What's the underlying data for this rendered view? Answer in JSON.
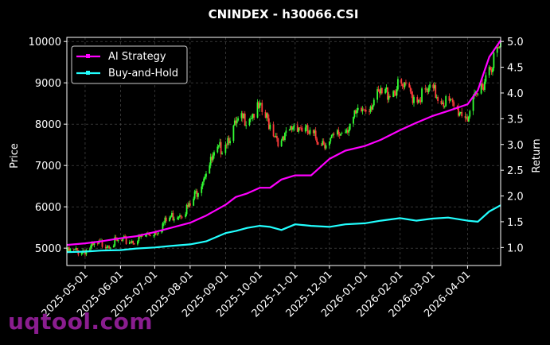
{
  "watermark": "uqtool.com",
  "chart_data": {
    "type": "line",
    "title": "CNINDEX - h30066.CSI",
    "ylabel_left": "Price",
    "ylabel_right": "Return",
    "ylim_left": [
      4580,
      10100
    ],
    "ylim_right": [
      0.65,
      5.08
    ],
    "yticks_left": [
      5000,
      6000,
      7000,
      8000,
      9000,
      10000
    ],
    "yticks_right": [
      1.0,
      1.5,
      2.0,
      2.5,
      3.0,
      3.5,
      4.0,
      4.5,
      5.0
    ],
    "xlim": [
      "2025-04-15",
      "2026-04-30"
    ],
    "xticks": [
      "2025-05-01",
      "2025-06-01",
      "2025-07-01",
      "2025-08-01",
      "2025-09-01",
      "2025-10-01",
      "2025-11-01",
      "2025-12-01",
      "2026-01-01",
      "2026-02-01",
      "2026-03-01",
      "2026-04-01"
    ],
    "grid": true,
    "legend_position": "top-left",
    "colors": {
      "strategy": "#ff00ff",
      "buyhold": "#22ffff",
      "up": "#33ff33",
      "down": "#ff3b3b",
      "grid": "#555555"
    },
    "series": [
      {
        "name": "AI Strategy",
        "axis": "right",
        "color": "#ff00ff",
        "x": [
          "2025-04-15",
          "2025-05-01",
          "2025-05-15",
          "2025-06-01",
          "2025-06-15",
          "2025-07-01",
          "2025-07-15",
          "2025-08-01",
          "2025-08-15",
          "2025-09-01",
          "2025-09-10",
          "2025-09-20",
          "2025-10-01",
          "2025-10-10",
          "2025-10-20",
          "2025-11-01",
          "2025-11-15",
          "2025-12-01",
          "2025-12-15",
          "2026-01-01",
          "2026-01-15",
          "2026-02-01",
          "2026-02-15",
          "2026-03-01",
          "2026-03-15",
          "2026-04-01",
          "2026-04-10",
          "2026-04-20",
          "2026-04-30"
        ],
        "values": [
          1.05,
          1.08,
          1.12,
          1.18,
          1.22,
          1.3,
          1.38,
          1.48,
          1.62,
          1.83,
          1.98,
          2.05,
          2.16,
          2.16,
          2.32,
          2.4,
          2.4,
          2.72,
          2.88,
          2.97,
          3.09,
          3.28,
          3.42,
          3.55,
          3.65,
          3.78,
          4.05,
          4.7,
          5.02
        ]
      },
      {
        "name": "Buy-and-Hold",
        "axis": "right",
        "color": "#22ffff",
        "x": [
          "2025-04-15",
          "2025-05-01",
          "2025-05-15",
          "2025-06-01",
          "2025-06-15",
          "2025-07-01",
          "2025-07-15",
          "2025-08-01",
          "2025-08-15",
          "2025-09-01",
          "2025-09-10",
          "2025-09-20",
          "2025-10-01",
          "2025-10-10",
          "2025-10-20",
          "2025-11-01",
          "2025-11-15",
          "2025-12-01",
          "2025-12-15",
          "2026-01-01",
          "2026-01-15",
          "2026-02-01",
          "2026-02-15",
          "2026-03-01",
          "2026-03-15",
          "2026-04-01",
          "2026-04-10",
          "2026-04-20",
          "2026-04-30"
        ],
        "values": [
          0.91,
          0.92,
          0.94,
          0.95,
          0.98,
          1.0,
          1.03,
          1.06,
          1.12,
          1.28,
          1.32,
          1.38,
          1.42,
          1.4,
          1.34,
          1.45,
          1.42,
          1.4,
          1.45,
          1.47,
          1.52,
          1.57,
          1.52,
          1.56,
          1.58,
          1.52,
          1.5,
          1.7,
          1.82
        ]
      }
    ],
    "price": {
      "name": "h30066.CSI",
      "axis": "left",
      "x": [
        "2025-04-15",
        "2025-05-01",
        "2025-05-15",
        "2025-06-01",
        "2025-06-15",
        "2025-07-01",
        "2025-07-15",
        "2025-08-01",
        "2025-08-15",
        "2025-09-01",
        "2025-09-10",
        "2025-09-20",
        "2025-10-01",
        "2025-10-10",
        "2025-10-20",
        "2025-11-01",
        "2025-11-15",
        "2025-12-01",
        "2025-12-15",
        "2026-01-01",
        "2026-01-15",
        "2026-02-01",
        "2026-02-15",
        "2026-03-01",
        "2026-03-15",
        "2026-04-01",
        "2026-04-10",
        "2026-04-20",
        "2026-04-30"
      ],
      "values": [
        4900,
        4950,
        5100,
        5150,
        5200,
        5400,
        5750,
        6000,
        6900,
        7600,
        7950,
        8200,
        8350,
        8000,
        7500,
        8050,
        7700,
        7550,
        7900,
        8400,
        8700,
        8900,
        8650,
        8800,
        8500,
        8200,
        8700,
        9400,
        9850
      ]
    }
  }
}
